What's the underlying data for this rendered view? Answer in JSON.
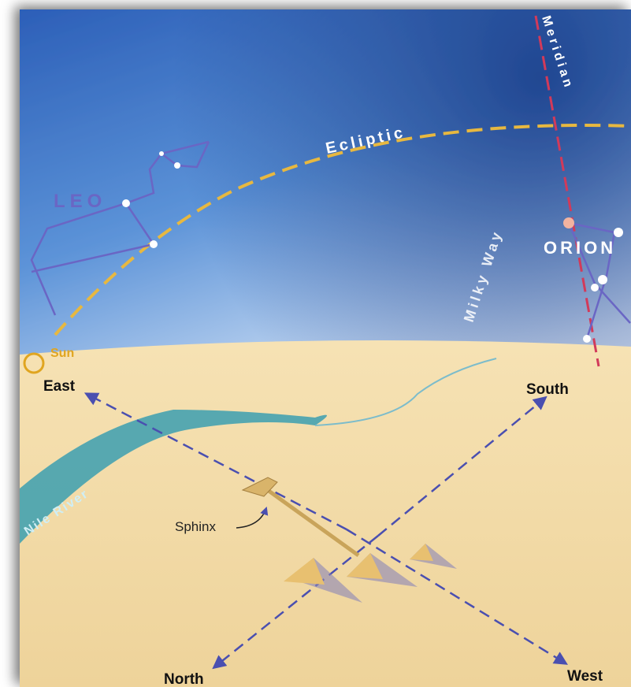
{
  "labels": {
    "meridian": "Meridian",
    "ecliptic": "Ecliptic",
    "milky_way": "Milky Way",
    "leo": "LEO",
    "orion": "ORION",
    "sun": "Sun",
    "east": "East",
    "south": "South",
    "north": "North",
    "west": "West",
    "nile": "Nile River",
    "sphinx": "Sphinx"
  }
}
